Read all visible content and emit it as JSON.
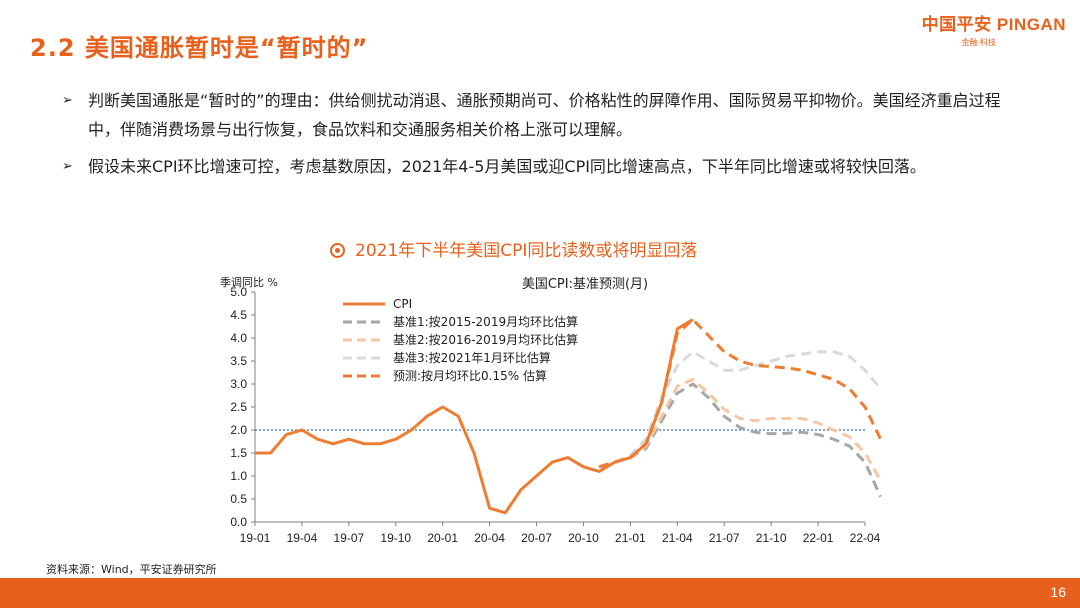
{
  "slide": {
    "title": "2.2 美国通胀暂时是“暂时的”",
    "page_number": "16",
    "source": "资料来源：Wind，平安证券研究所"
  },
  "logo": {
    "main": "中国平安 PINGAN",
    "sub": "金融·科技"
  },
  "bullets": [
    "判断美国通胀是“暂时的”的理由：供给侧扰动消退、通胀预期尚可、价格粘性的屏障作用、国际贸易平抑物价。美国经济重启过程中，伴随消费场景与出行恢复，食品饮料和交通服务相关价格上涨可以理解。",
    "假设未来CPI环比增速可控，考虑基数原因，2021年4-5月美国或迎CPI同比增速高点，下半年同比增速或将较快回落。"
  ],
  "bullet_marker": "➢",
  "chart_heading": "2021年下半年美国CPI同比读数或将明显回落",
  "chart_data": {
    "type": "line",
    "title": "美国CPI:基准预测(月)",
    "ylabel": "季调同比 %",
    "ylim": [
      0,
      5.0
    ],
    "yticks": [
      "0.0",
      "0.5",
      "1.0",
      "1.5",
      "2.0",
      "2.5",
      "3.0",
      "3.5",
      "4.0",
      "4.5",
      "5.0"
    ],
    "xticks": [
      "19-01",
      "19-04",
      "19-07",
      "19-10",
      "20-01",
      "20-04",
      "20-07",
      "20-10",
      "21-01",
      "21-04",
      "21-07",
      "21-10",
      "22-01",
      "22-04"
    ],
    "x_start": "2019-01",
    "reference_line": 2.0,
    "series": [
      {
        "name": "CPI",
        "color": "#ee7d31",
        "dash": "solid",
        "start_index": 0,
        "values": [
          1.5,
          1.5,
          1.9,
          2.0,
          1.8,
          1.7,
          1.8,
          1.7,
          1.7,
          1.8,
          2.0,
          2.3,
          2.5,
          2.3,
          1.5,
          0.3,
          0.2,
          0.7,
          1.0,
          1.3,
          1.4,
          1.2,
          1.1,
          1.3,
          1.4,
          1.7,
          2.6,
          4.2,
          4.4
        ]
      },
      {
        "name": "基准1:按2015-2019月均环比估算",
        "color": "#a6a6a6",
        "dash": "dashed",
        "start_index": 22,
        "values": [
          1.2,
          1.3,
          1.4,
          1.6,
          2.2,
          2.8,
          3.0,
          2.7,
          2.3,
          2.05,
          1.95,
          1.92,
          1.93,
          1.95,
          1.9,
          1.8,
          1.65,
          1.3,
          0.55
        ]
      },
      {
        "name": "基准2:按2016-2019月均环比估算",
        "color": "#f7c6a3",
        "dash": "dashed",
        "start_index": 22,
        "values": [
          1.2,
          1.3,
          1.4,
          1.65,
          2.3,
          2.95,
          3.1,
          2.8,
          2.45,
          2.25,
          2.2,
          2.25,
          2.25,
          2.25,
          2.15,
          2.0,
          1.85,
          1.5,
          0.9
        ]
      },
      {
        "name": "基准3:按2021年1月环比估算",
        "color": "#d9d9d9",
        "dash": "dashed",
        "start_index": 22,
        "values": [
          1.2,
          1.3,
          1.45,
          1.8,
          2.7,
          3.4,
          3.7,
          3.5,
          3.3,
          3.3,
          3.4,
          3.5,
          3.6,
          3.65,
          3.7,
          3.7,
          3.6,
          3.3,
          2.9
        ]
      },
      {
        "name": "预测:按月均环比0.15% 估算",
        "color": "#ee7d31",
        "dash": "dashed",
        "start_index": 22,
        "values": [
          1.2,
          1.3,
          1.4,
          1.7,
          2.6,
          4.1,
          4.4,
          4.05,
          3.7,
          3.5,
          3.4,
          3.38,
          3.35,
          3.3,
          3.2,
          3.1,
          2.9,
          2.5,
          1.8
        ]
      }
    ]
  }
}
